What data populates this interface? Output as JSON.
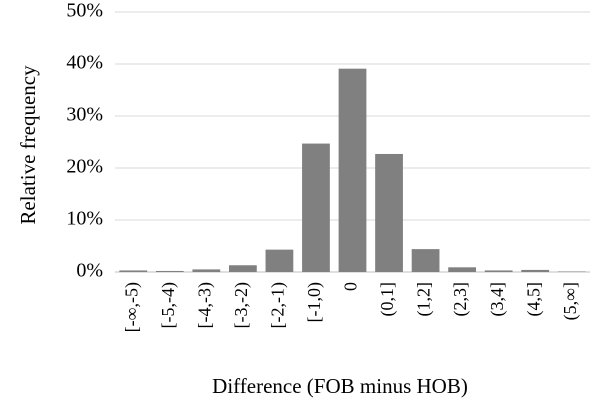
{
  "chart_data": {
    "type": "bar",
    "x_label": "Difference (FOB minus HOB)",
    "y_label": "Relative frequency",
    "categories": [
      "[-∞,-5)",
      "[-5,-4)",
      "[-4,-3)",
      "[-3,-2)",
      "[-2,-1)",
      "[-1,0)",
      "0",
      "(0,1]",
      "(1,2]",
      "(2,3]",
      "(3,4]",
      "(4,5]",
      "(5,∞]"
    ],
    "values": [
      0.3,
      0.2,
      0.5,
      1.3,
      4.3,
      24.7,
      39.1,
      22.7,
      4.4,
      0.9,
      0.3,
      0.4,
      0.1
    ],
    "color": "#808080",
    "ylim": [
      0,
      50
    ],
    "yticks": [
      {
        "value": 0,
        "label": "0%"
      },
      {
        "value": 10,
        "label": "10%"
      },
      {
        "value": 20,
        "label": "20%"
      },
      {
        "value": 30,
        "label": "30%"
      },
      {
        "value": 40,
        "label": "40%"
      },
      {
        "value": 50,
        "label": "50%"
      }
    ],
    "grid": true
  }
}
